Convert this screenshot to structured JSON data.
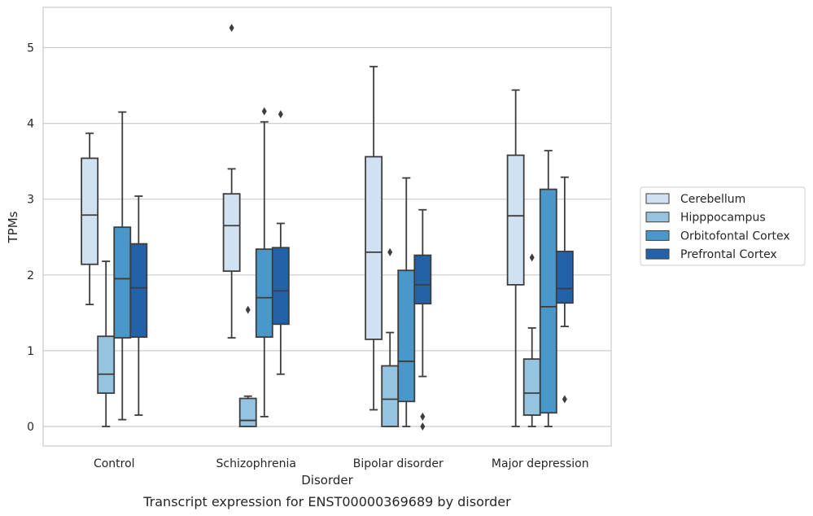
{
  "chart_data": {
    "type": "box",
    "caption": "Transcript expression for ENST00000369689 by disorder",
    "xlabel": "Disorder",
    "ylabel": "TPMs",
    "ylim": [
      -0.25,
      5.5
    ],
    "yticks": [
      "0",
      "1",
      "2",
      "3",
      "4",
      "5"
    ],
    "grid": true,
    "legend_position": "right",
    "categories": [
      "Control",
      "Schizophrenia",
      "Bipolar disorder",
      "Major depression"
    ],
    "series": [
      {
        "name": "Cerebellum",
        "color": "#d0e1f2",
        "boxes": [
          {
            "whislo": 1.61,
            "q1": 2.14,
            "med": 2.79,
            "q3": 3.54,
            "whishi": 3.87,
            "fliers": []
          },
          {
            "whislo": 1.17,
            "q1": 2.05,
            "med": 2.65,
            "q3": 3.07,
            "whishi": 3.4,
            "fliers": [
              5.26
            ]
          },
          {
            "whislo": 0.22,
            "q1": 1.15,
            "med": 2.3,
            "q3": 3.56,
            "whishi": 4.75,
            "fliers": []
          },
          {
            "whislo": 0.0,
            "q1": 1.87,
            "med": 2.78,
            "q3": 3.58,
            "whishi": 4.44,
            "fliers": []
          }
        ]
      },
      {
        "name": "Hipppocampus",
        "color": "#94c4df",
        "boxes": [
          {
            "whislo": 0.0,
            "q1": 0.44,
            "med": 0.69,
            "q3": 1.19,
            "whishi": 2.18,
            "fliers": []
          },
          {
            "whislo": 0.0,
            "q1": 0.0,
            "med": 0.08,
            "q3": 0.37,
            "whishi": 0.4,
            "fliers": [
              1.54
            ]
          },
          {
            "whislo": 0.0,
            "q1": 0.0,
            "med": 0.36,
            "q3": 0.8,
            "whishi": 1.24,
            "fliers": [
              2.3
            ]
          },
          {
            "whislo": 0.0,
            "q1": 0.15,
            "med": 0.44,
            "q3": 0.89,
            "whishi": 1.3,
            "fliers": [
              2.23
            ]
          }
        ]
      },
      {
        "name": "Orbitofontal Cortex",
        "color": "#4a98c9",
        "boxes": [
          {
            "whislo": 0.09,
            "q1": 1.17,
            "med": 1.95,
            "q3": 2.63,
            "whishi": 4.15,
            "fliers": []
          },
          {
            "whislo": 0.13,
            "q1": 1.18,
            "med": 1.7,
            "q3": 2.34,
            "whishi": 4.02,
            "fliers": [
              4.16
            ]
          },
          {
            "whislo": 0.0,
            "q1": 0.33,
            "med": 0.86,
            "q3": 2.06,
            "whishi": 3.28,
            "fliers": []
          },
          {
            "whislo": 0.0,
            "q1": 0.18,
            "med": 1.58,
            "q3": 3.13,
            "whishi": 3.64,
            "fliers": []
          }
        ]
      },
      {
        "name": "Prefrontal Cortex",
        "color": "#2362a8",
        "boxes": [
          {
            "whislo": 0.15,
            "q1": 1.18,
            "med": 1.83,
            "q3": 2.41,
            "whishi": 3.04,
            "fliers": []
          },
          {
            "whislo": 0.69,
            "q1": 1.35,
            "med": 1.79,
            "q3": 2.36,
            "whishi": 2.68,
            "fliers": [
              4.12
            ]
          },
          {
            "whislo": 0.66,
            "q1": 1.62,
            "med": 1.87,
            "q3": 2.26,
            "whishi": 2.86,
            "fliers": [
              0.13,
              0.0
            ]
          },
          {
            "whislo": 1.32,
            "q1": 1.63,
            "med": 1.82,
            "q3": 2.31,
            "whishi": 3.29,
            "fliers": [
              0.36
            ]
          }
        ]
      }
    ]
  }
}
